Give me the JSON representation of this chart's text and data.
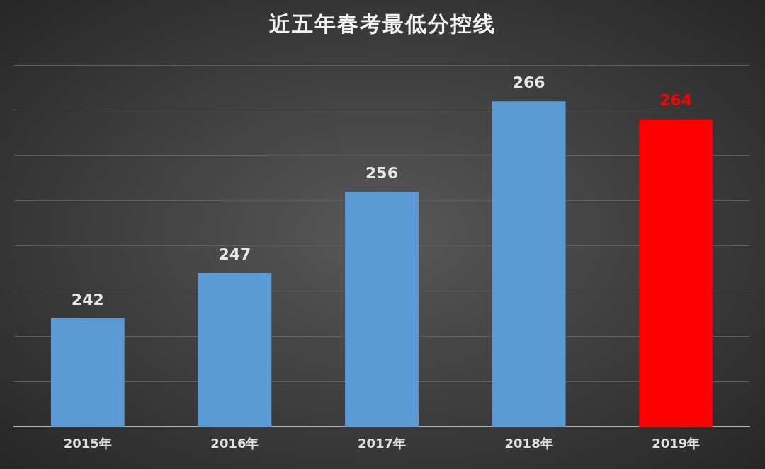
{
  "chart_data": {
    "type": "bar",
    "title": "近五年春考最低分控线",
    "categories": [
      "2015年",
      "2016年",
      "2017年",
      "2018年",
      "2019年"
    ],
    "values": [
      242,
      247,
      256,
      266,
      264
    ],
    "colors": [
      "#5b9bd5",
      "#5b9bd5",
      "#5b9bd5",
      "#5b9bd5",
      "#ff0000"
    ],
    "ylim": [
      230,
      270
    ],
    "yticks": [
      {
        "value": 230,
        "label": null
      },
      {
        "value": 235,
        "label": null
      },
      {
        "value": 240,
        "label": null
      },
      {
        "value": 245,
        "label": null
      },
      {
        "value": 250,
        "label": null
      },
      {
        "value": 255,
        "label": null
      },
      {
        "value": 260,
        "label": null
      },
      {
        "value": 265,
        "label": null
      },
      {
        "value": 270,
        "label": null
      }
    ],
    "tick_labels": "x",
    "grid": "y",
    "data_labels": true,
    "legend": false
  }
}
